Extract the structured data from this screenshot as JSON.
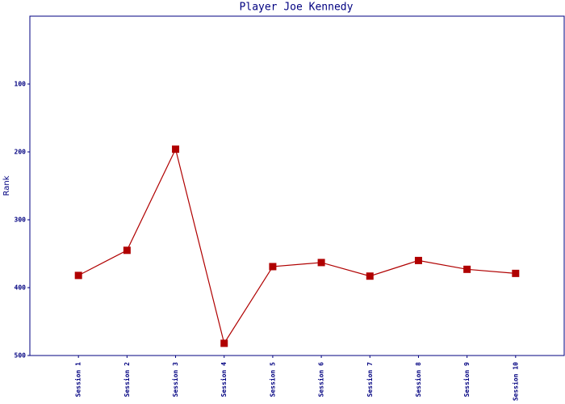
{
  "chart_data": {
    "type": "line",
    "title": "Player Joe Kennedy",
    "y_label": "Rank",
    "categories": [
      "Session 1",
      "Session 2",
      "Session 3",
      "Session 4",
      "Session 5",
      "Session 6",
      "Session 7",
      "Session 8",
      "Session 9",
      "Session 10"
    ],
    "series": [
      {
        "name": "Rank",
        "color": "#b00000",
        "values": [
          382,
          345,
          196,
          482,
          369,
          363,
          383,
          360,
          373,
          379
        ]
      }
    ],
    "ylim": [
      500,
      0
    ],
    "yticks": [
      100,
      200,
      300,
      400,
      500
    ],
    "grid": false
  }
}
